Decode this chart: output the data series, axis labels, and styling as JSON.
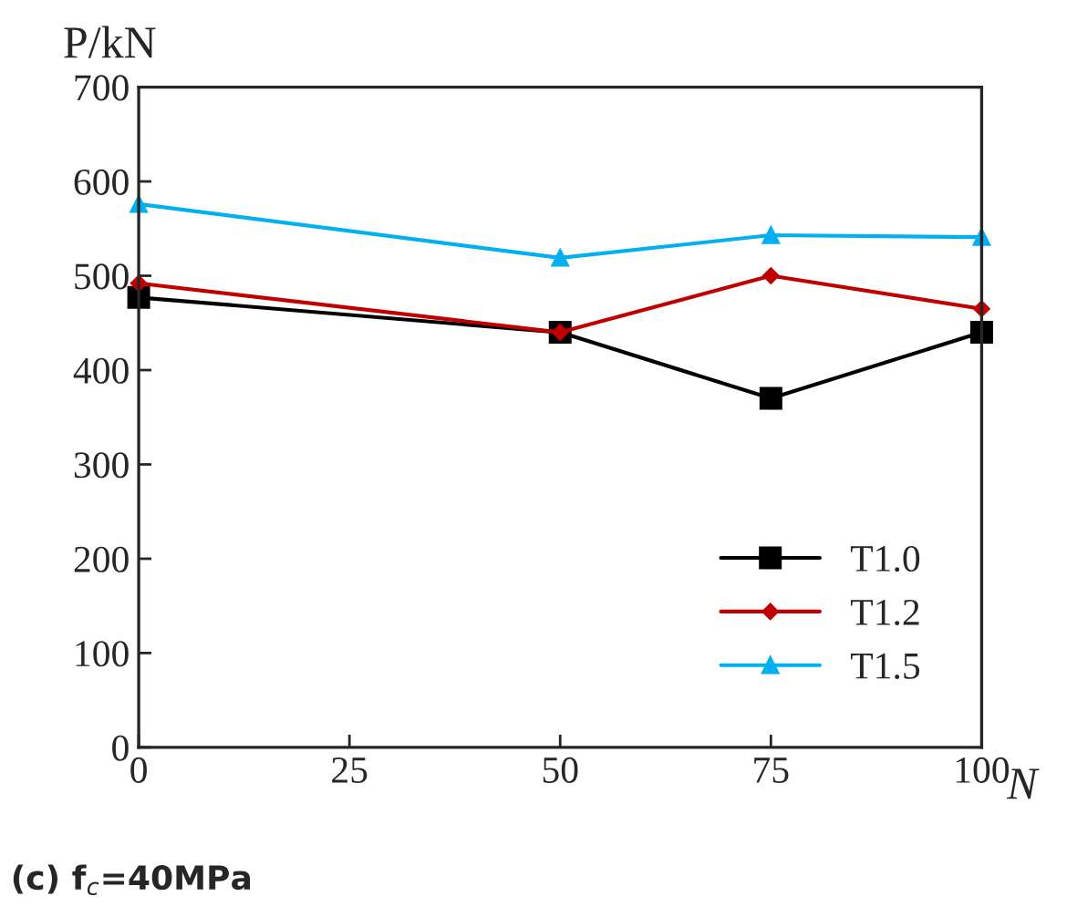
{
  "chart_data": {
    "type": "line",
    "x": [
      0,
      50,
      75,
      100
    ],
    "series": [
      {
        "name": "T1.0",
        "color": "#000000",
        "marker": "square",
        "values": [
          477,
          440,
          370,
          440
        ]
      },
      {
        "name": "T1.2",
        "color": "#c00000",
        "marker": "diamond",
        "values": [
          492,
          440,
          500,
          465
        ]
      },
      {
        "name": "T1.5",
        "color": "#00b0f0",
        "marker": "triangle",
        "values": [
          576,
          519,
          543,
          541
        ]
      }
    ],
    "xlim": [
      0,
      100
    ],
    "xticks": [
      0,
      25,
      50,
      75,
      100
    ],
    "ylim": [
      0,
      700
    ],
    "yticks": [
      0,
      100,
      200,
      300,
      400,
      500,
      600,
      700
    ],
    "xlabel": "N",
    "ylabel": "P/kN",
    "annotations": [
      "(c) f$_{c}$=40MPa"
    ],
    "grid": false,
    "legend": "bottom right",
    "line_style": "solid"
  }
}
